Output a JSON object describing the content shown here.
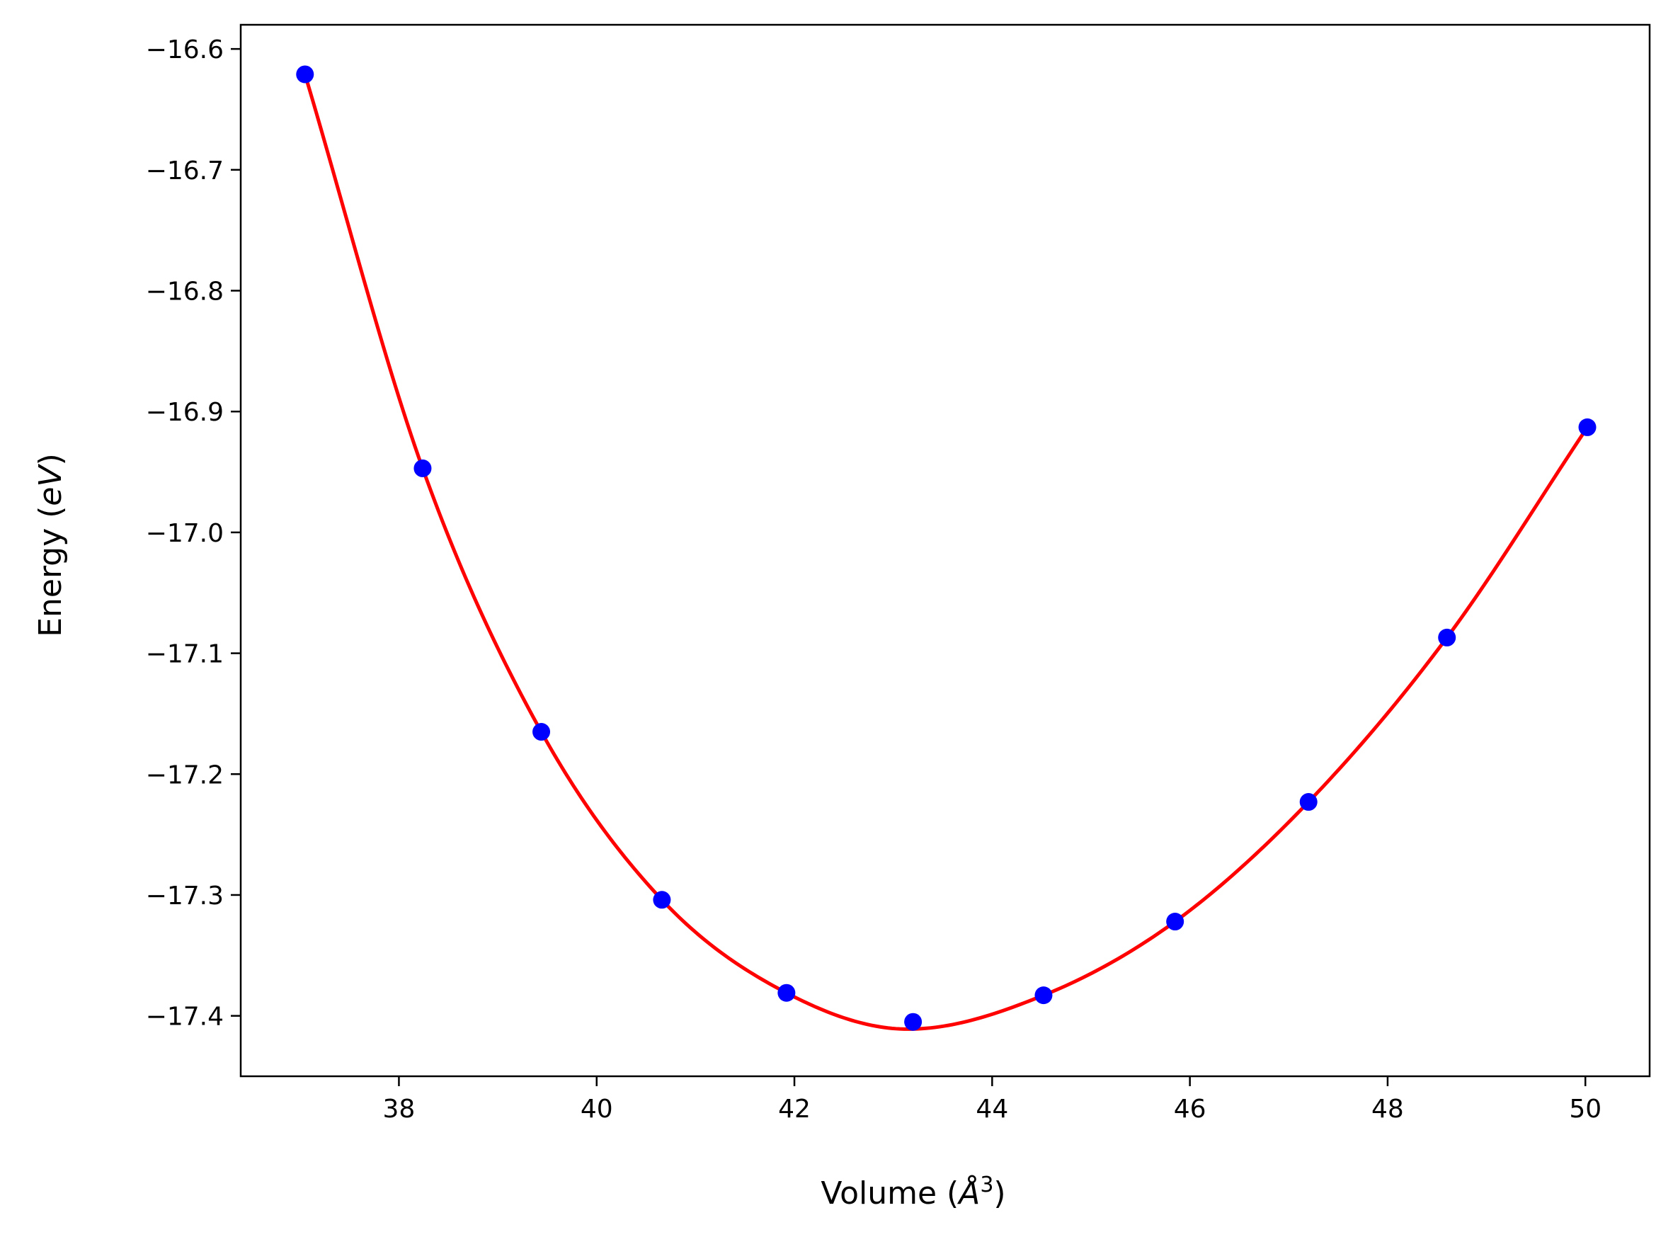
{
  "chart_data": {
    "type": "scatter",
    "xlabel": {
      "text": "Volume (",
      "italic": "Å",
      "sup": "3",
      "tail": ")"
    },
    "ylabel": {
      "text": "Energy (",
      "italic": "eV",
      "tail": ")"
    },
    "xlim": [
      36.4,
      50.65
    ],
    "ylim": [
      -17.45,
      -16.58
    ],
    "xticks": [
      38,
      40,
      42,
      44,
      46,
      48,
      50
    ],
    "xtick_labels": [
      "38",
      "40",
      "42",
      "44",
      "46",
      "48",
      "50"
    ],
    "yticks": [
      -16.6,
      -16.7,
      -16.8,
      -16.9,
      -17.0,
      -17.1,
      -17.2,
      -17.3,
      -17.4
    ],
    "ytick_labels": [
      "−16.6",
      "−16.7",
      "−16.8",
      "−16.9",
      "−17.0",
      "−17.1",
      "−17.2",
      "−17.3",
      "−17.4"
    ],
    "grid": false,
    "series": [
      {
        "kind": "points",
        "color": "#0000ff",
        "x": [
          37.05,
          38.24,
          39.44,
          40.66,
          41.92,
          43.2,
          44.52,
          45.85,
          47.2,
          48.6,
          50.02
        ],
        "y": [
          -16.621,
          -16.947,
          -17.165,
          -17.304,
          -17.381,
          -17.405,
          -17.383,
          -17.322,
          -17.223,
          -17.087,
          -16.913
        ]
      },
      {
        "kind": "fit-curve",
        "color": "#ff0000",
        "x": [
          37.05,
          38.24,
          39.44,
          40.66,
          41.92,
          43.15,
          44.52,
          45.85,
          47.2,
          48.6,
          50.02
        ],
        "y": [
          -16.621,
          -16.947,
          -17.165,
          -17.304,
          -17.381,
          -17.411,
          -17.383,
          -17.322,
          -17.223,
          -17.087,
          -16.913
        ]
      }
    ]
  }
}
